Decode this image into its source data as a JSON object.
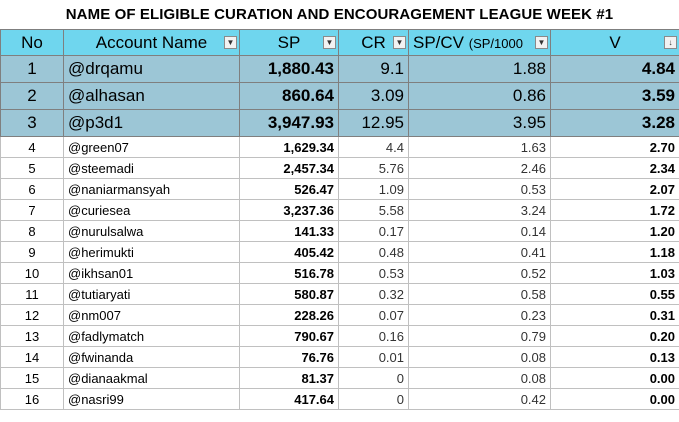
{
  "title": "NAME OF ELIGIBLE CURATION AND ENCOURAGEMENT LEAGUE WEEK #1",
  "headers": {
    "no": "No",
    "account": "Account Name",
    "sp": "SP",
    "cr": "CR",
    "spcv": "SP/CV",
    "spcv_sub": "(SP/1000",
    "v": "V"
  },
  "icons": {
    "filter": "dropdown-arrow-icon",
    "sort": "sort-descending-icon"
  },
  "colors": {
    "header_bg": "#6fd6ee",
    "top3_bg": "#9cc6d6"
  },
  "top3": [
    {
      "no": "1",
      "account": "@drqamu",
      "sp": "1,880.43",
      "cr": "9.1",
      "spcv": "1.88",
      "v": "4.84"
    },
    {
      "no": "2",
      "account": "@alhasan",
      "sp": "860.64",
      "cr": "3.09",
      "spcv": "0.86",
      "v": "3.59"
    },
    {
      "no": "3",
      "account": "@p3d1",
      "sp": "3,947.93",
      "cr": "12.95",
      "spcv": "3.95",
      "v": "3.28"
    }
  ],
  "rows": [
    {
      "no": "4",
      "account": "@green07",
      "sp": "1,629.34",
      "cr": "4.4",
      "spcv": "1.63",
      "v": "2.70"
    },
    {
      "no": "5",
      "account": "@steemadi",
      "sp": "2,457.34",
      "cr": "5.76",
      "spcv": "2.46",
      "v": "2.34"
    },
    {
      "no": "6",
      "account": "@naniarmansyah",
      "sp": "526.47",
      "cr": "1.09",
      "spcv": "0.53",
      "v": "2.07"
    },
    {
      "no": "7",
      "account": "@curiesea",
      "sp": "3,237.36",
      "cr": "5.58",
      "spcv": "3.24",
      "v": "1.72"
    },
    {
      "no": "8",
      "account": "@nurulsalwa",
      "sp": "141.33",
      "cr": "0.17",
      "spcv": "0.14",
      "v": "1.20"
    },
    {
      "no": "9",
      "account": "@herimukti",
      "sp": "405.42",
      "cr": "0.48",
      "spcv": "0.41",
      "v": "1.18"
    },
    {
      "no": "10",
      "account": "@ikhsan01",
      "sp": "516.78",
      "cr": "0.53",
      "spcv": "0.52",
      "v": "1.03"
    },
    {
      "no": "11",
      "account": "@tutiaryati",
      "sp": "580.87",
      "cr": "0.32",
      "spcv": "0.58",
      "v": "0.55"
    },
    {
      "no": "12",
      "account": "@nm007",
      "sp": "228.26",
      "cr": "0.07",
      "spcv": "0.23",
      "v": "0.31"
    },
    {
      "no": "13",
      "account": "@fadlymatch",
      "sp": "790.67",
      "cr": "0.16",
      "spcv": "0.79",
      "v": "0.20"
    },
    {
      "no": "14",
      "account": "@fwinanda",
      "sp": "76.76",
      "cr": "0.01",
      "spcv": "0.08",
      "v": "0.13"
    },
    {
      "no": "15",
      "account": "@dianaakmal",
      "sp": "81.37",
      "cr": "0",
      "spcv": "0.08",
      "v": "0.00"
    },
    {
      "no": "16",
      "account": "@nasri99",
      "sp": "417.64",
      "cr": "0",
      "spcv": "0.42",
      "v": "0.00"
    }
  ]
}
